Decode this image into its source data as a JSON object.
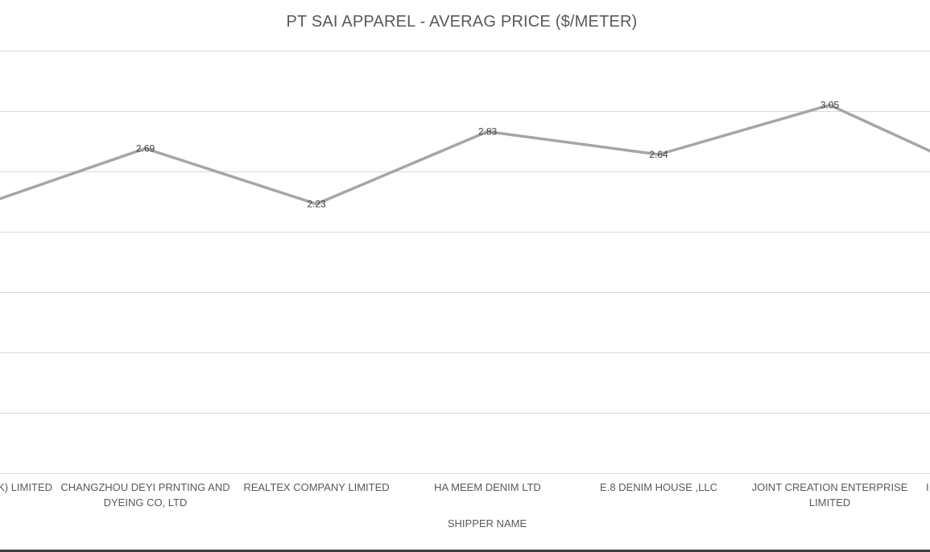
{
  "chart_data": {
    "type": "line",
    "title": "PT SAI APPAREL - AVERAG PRICE ($/METER)",
    "xlabel": "SHIPPER NAME",
    "ylabel": "",
    "ylim": [
      0,
      3.5
    ],
    "y_grid_step": 0.5,
    "grid": true,
    "legend": "none",
    "line_color": "#a6a6a6",
    "grid_color": "#d9d9d9",
    "categories": [
      "K) LIMITED",
      "CHANGZHOU DEYI PRNTING AND DYEING CO, LTD",
      "REALTEX COMPANY LIMITED",
      "HA MEEM DENIM LTD",
      "E.8 DENIM HOUSE ,LLC",
      "JOINT CREATION ENTERPRISE LIMITED",
      "I"
    ],
    "category_lines": [
      [
        ")K) LIMITED"
      ],
      [
        "CHANGZHOU DEYI PRNTING AND",
        "DYEING CO, LTD"
      ],
      [
        "REALTEX COMPANY LIMITED"
      ],
      [
        "HA MEEM DENIM LTD"
      ],
      [
        "E.8 DENIM HOUSE ,LLC"
      ],
      [
        "JOINT CREATION ENTERPRISE",
        "LIMITED"
      ],
      [
        "I"
      ]
    ],
    "series": [
      {
        "values": [
          2.2,
          2.69,
          2.23,
          2.83,
          2.64,
          3.05,
          2.4
        ],
        "labels": [
          "",
          "2.69",
          "2.23",
          "2.83",
          "2.64",
          "3.05",
          ""
        ]
      }
    ]
  }
}
